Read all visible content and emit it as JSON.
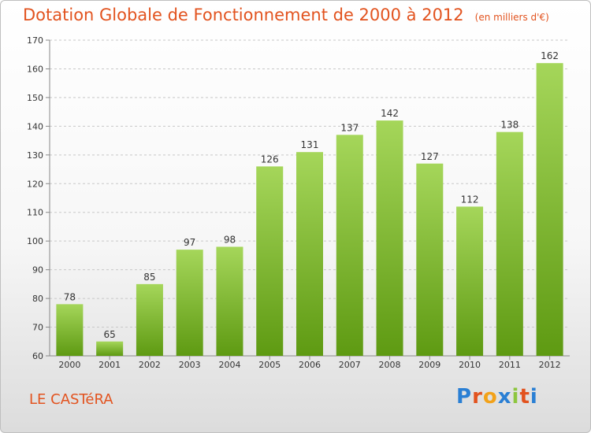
{
  "header": {
    "title": "Dotation Globale de Fonctionnement de 2000 à 2012",
    "unit": "(en milliers d'€)"
  },
  "footer": {
    "place": "LE CASTéRA",
    "logo_letters": [
      "P",
      "r",
      "o",
      "x",
      "i",
      "t",
      "i"
    ],
    "logo_colors": [
      "#2a7fd4",
      "#e2531f",
      "#f2a21a",
      "#2a7fd4",
      "#8dc63f",
      "#e2531f",
      "#2a7fd4"
    ]
  },
  "colors": {
    "bar_top": "#a5d65a",
    "bar_bottom": "#5e9a12",
    "title": "#e2531f",
    "grid": "#c8c8c8"
  },
  "chart_data": {
    "type": "bar",
    "title": "Dotation Globale de Fonctionnement de 2000 à 2012",
    "subtitle": "(en milliers d'€)",
    "xlabel": "",
    "ylabel": "",
    "categories": [
      "2000",
      "2001",
      "2002",
      "2003",
      "2004",
      "2005",
      "2006",
      "2007",
      "2008",
      "2009",
      "2010",
      "2011",
      "2012"
    ],
    "values": [
      78,
      65,
      85,
      97,
      98,
      126,
      131,
      137,
      142,
      127,
      112,
      138,
      162
    ],
    "ylim": [
      60,
      170
    ],
    "yticks": [
      60,
      70,
      80,
      90,
      100,
      110,
      120,
      130,
      140,
      150,
      160,
      170
    ],
    "grid": "dashed horizontal"
  }
}
